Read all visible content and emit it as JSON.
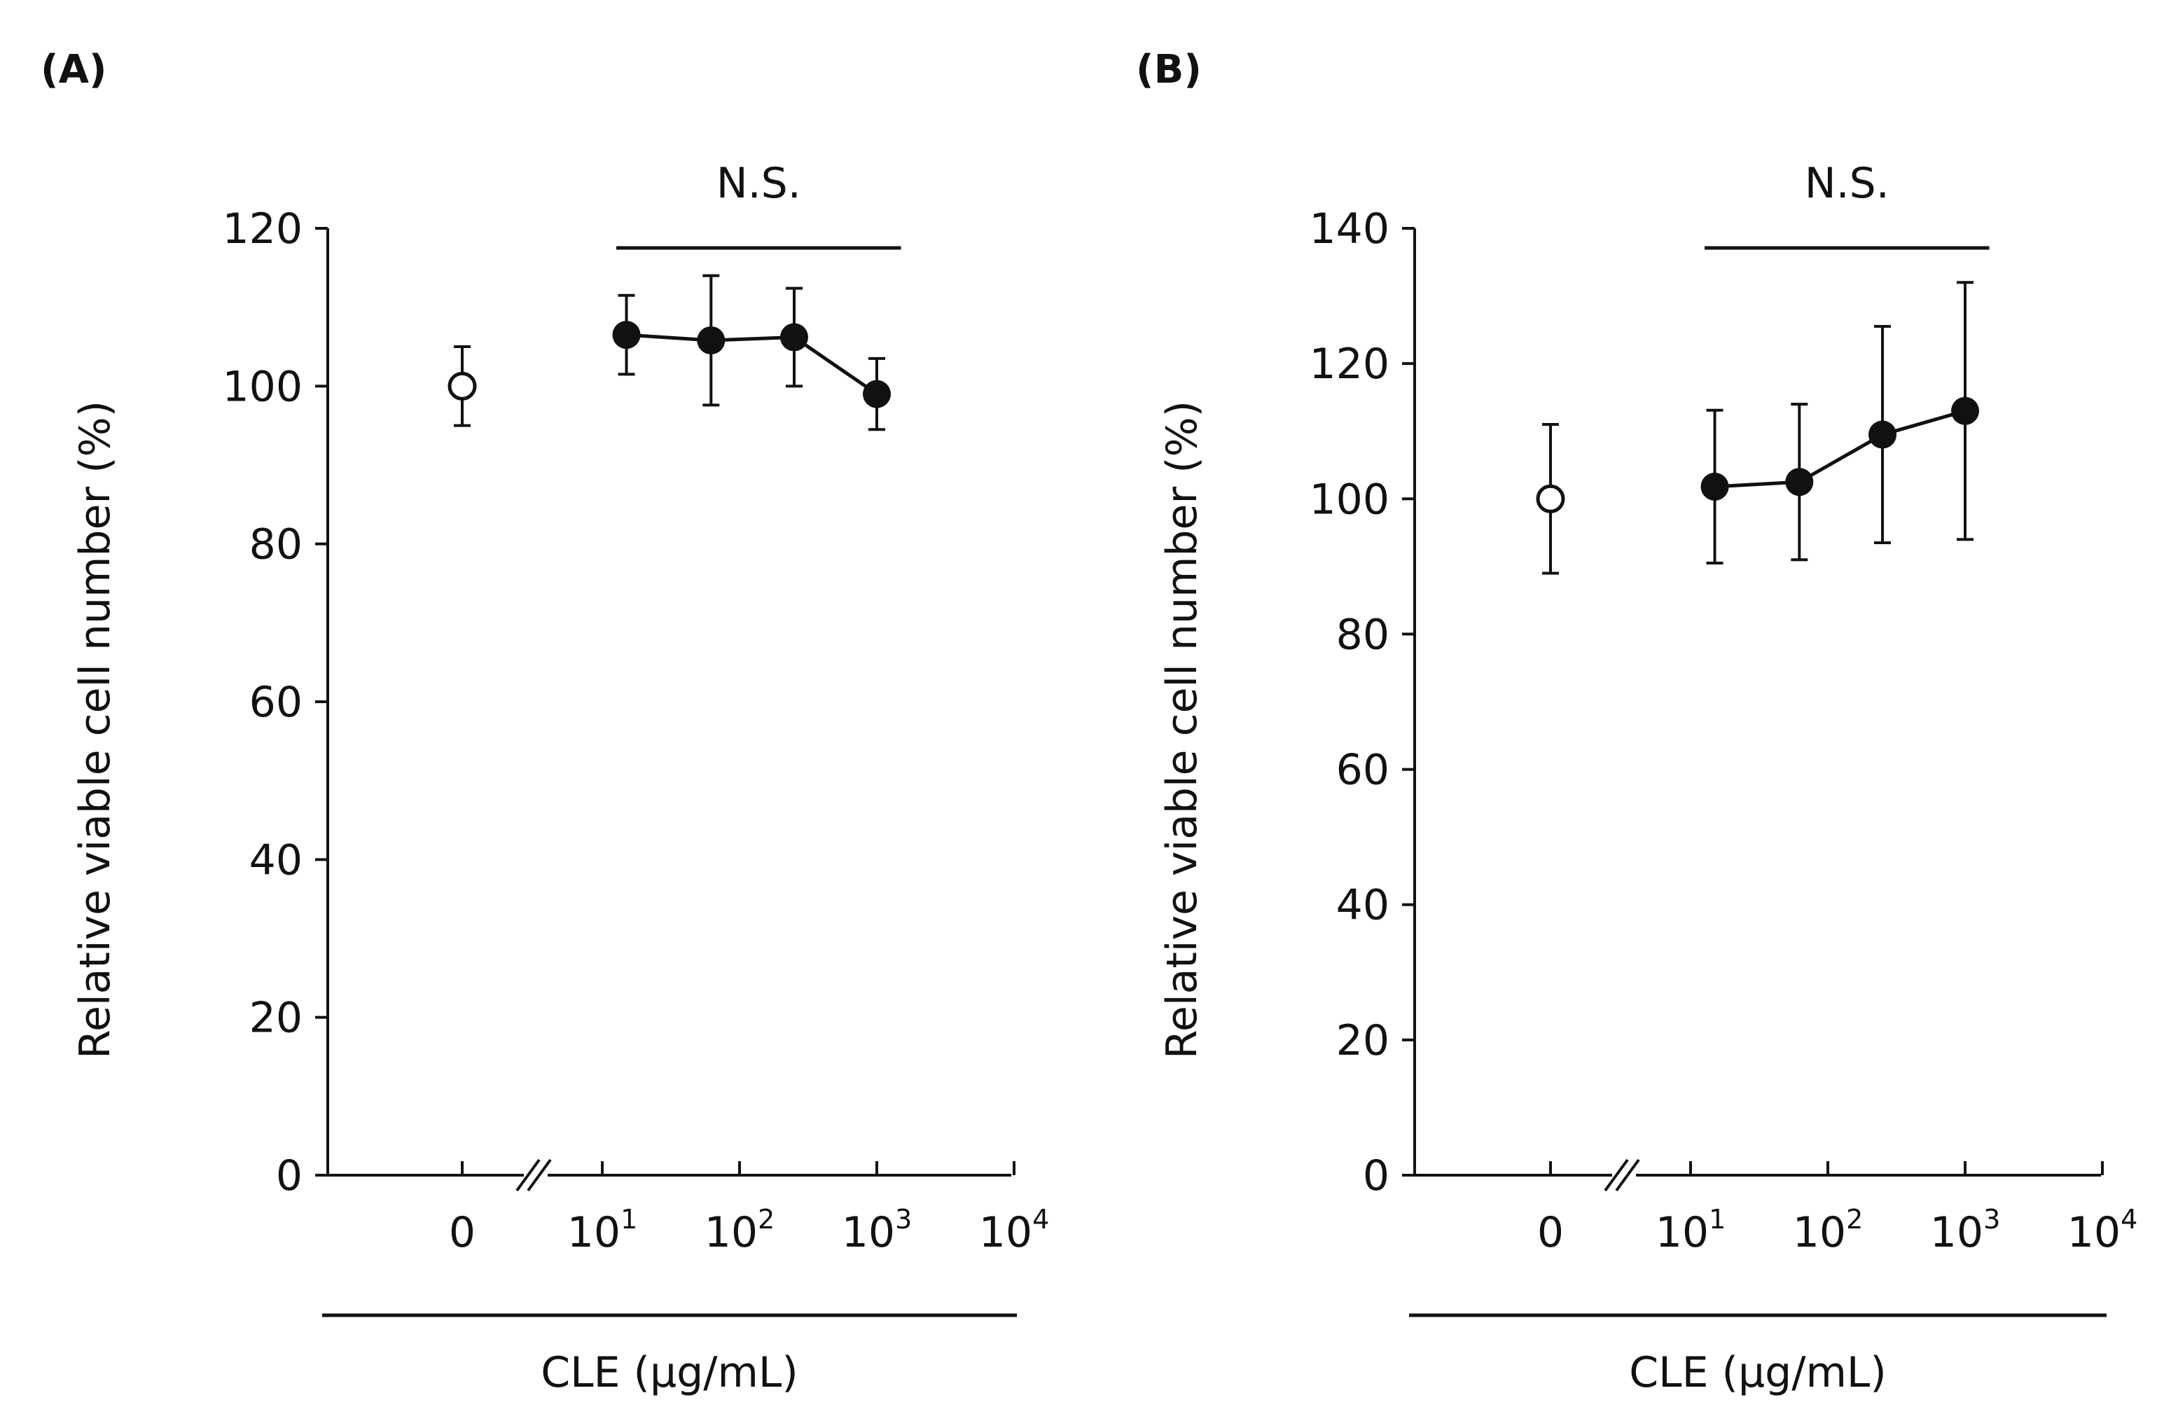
{
  "chart_data": [
    {
      "type": "scatter",
      "panel_label": "(A)",
      "ylabel": "Relative viable cell number (%)",
      "xlabel": "CLE (μg/mL)",
      "ylim": [
        0,
        120
      ],
      "yticks": [
        "0",
        "20",
        "40",
        "60",
        "80",
        "100",
        "120"
      ],
      "x_scale": "log",
      "x_ticks": [
        {
          "base": "0",
          "exp": ""
        },
        {
          "base": "10",
          "exp": "1"
        },
        {
          "base": "10",
          "exp": "2"
        },
        {
          "base": "10",
          "exp": "3"
        },
        {
          "base": "10",
          "exp": "4"
        }
      ],
      "control": {
        "x_label": "0",
        "y": 100,
        "err": 5,
        "marker": "open-circle"
      },
      "series": [
        {
          "name": "CLE",
          "marker": "filled-circle",
          "x": [
            15,
            62,
            250,
            1000
          ],
          "y": [
            106.5,
            105.8,
            106.2,
            99
          ],
          "err": [
            5,
            8.2,
            6.2,
            4.5
          ]
        }
      ],
      "annotation": {
        "text": "N.S.",
        "x_range": [
          10,
          1500
        ]
      }
    },
    {
      "type": "scatter",
      "panel_label": "(B)",
      "ylabel": "Relative viable cell number (%)",
      "xlabel": "CLE (μg/mL)",
      "ylim": [
        0,
        140
      ],
      "yticks": [
        "0",
        "20",
        "40",
        "60",
        "80",
        "100",
        "120",
        "140"
      ],
      "x_scale": "log",
      "x_ticks": [
        {
          "base": "0",
          "exp": ""
        },
        {
          "base": "10",
          "exp": "1"
        },
        {
          "base": "10",
          "exp": "2"
        },
        {
          "base": "10",
          "exp": "3"
        },
        {
          "base": "10",
          "exp": "4"
        }
      ],
      "control": {
        "x_label": "0",
        "y": 100,
        "err": 11,
        "marker": "open-circle"
      },
      "series": [
        {
          "name": "CLE",
          "marker": "filled-circle",
          "x": [
            15,
            62,
            250,
            1000
          ],
          "y": [
            101.8,
            102.5,
            109.5,
            113
          ],
          "err": [
            11.3,
            11.5,
            16,
            19
          ]
        }
      ],
      "annotation": {
        "text": "N.S.",
        "x_range": [
          10,
          1500
        ]
      }
    }
  ]
}
